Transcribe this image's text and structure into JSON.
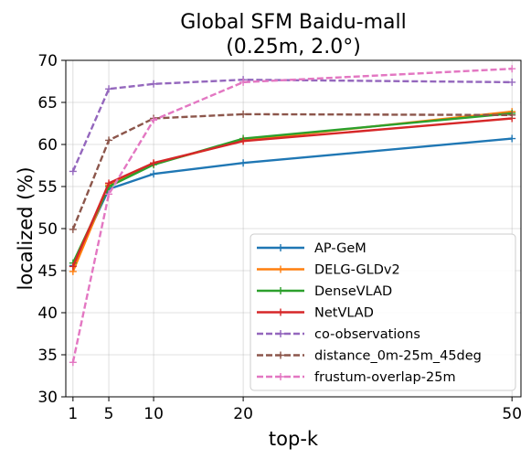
{
  "chart_data": {
    "type": "line",
    "title": "Global SFM Baidu-mall",
    "subtitle": "(0.25m, 2.0°)",
    "xlabel": "top-k",
    "ylabel": "localized (%)",
    "x": [
      1,
      5,
      10,
      20,
      50
    ],
    "xticks": [
      1,
      5,
      10,
      20,
      50
    ],
    "yticks": [
      30,
      35,
      40,
      45,
      50,
      55,
      60,
      65,
      70
    ],
    "xlim": [
      0.2,
      51.0
    ],
    "ylim": [
      30,
      70
    ],
    "grid": true,
    "legend_position": "lower-right",
    "series": [
      {
        "name": "AP-GeM",
        "color": "#1f77b4",
        "dash": "solid",
        "values": [
          45.6,
          54.7,
          56.5,
          57.8,
          60.7
        ]
      },
      {
        "name": "DELG-GLDv2",
        "color": "#ff7f0e",
        "dash": "solid",
        "values": [
          44.9,
          55.2,
          57.7,
          60.5,
          63.9
        ]
      },
      {
        "name": "DenseVLAD",
        "color": "#2ca02c",
        "dash": "solid",
        "values": [
          45.9,
          55.0,
          57.6,
          60.7,
          63.7
        ]
      },
      {
        "name": "NetVLAD",
        "color": "#d62728",
        "dash": "solid",
        "values": [
          45.5,
          55.4,
          57.8,
          60.4,
          63.1
        ]
      },
      {
        "name": "co-observations",
        "color": "#9467bd",
        "dash": "dashed",
        "values": [
          56.8,
          66.6,
          67.2,
          67.7,
          67.4
        ]
      },
      {
        "name": "distance_0m-25m_45deg",
        "color": "#8c564b",
        "dash": "dashed",
        "values": [
          49.9,
          60.5,
          63.1,
          63.6,
          63.5
        ]
      },
      {
        "name": "frustum-overlap-25m",
        "color": "#e377c2",
        "dash": "dashed",
        "values": [
          34.1,
          54.1,
          62.9,
          67.4,
          69.0
        ]
      }
    ]
  }
}
